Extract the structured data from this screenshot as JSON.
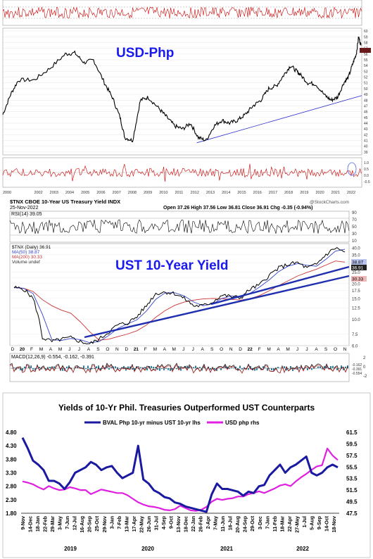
{
  "panel1": {
    "overlay_title": "USD-Php",
    "colors": {
      "price": "#000000",
      "trend": "#3333cc",
      "osc": "#cc0000",
      "title": "#1a1aee"
    },
    "x_labels": [
      "2000",
      "2002",
      "2003",
      "2004",
      "2005",
      "2006",
      "2007",
      "2008",
      "2009",
      "2010",
      "2011",
      "2012",
      "2013",
      "2014",
      "2015",
      "2016",
      "2017",
      "2018",
      "2019",
      "2020",
      "2021",
      "2022"
    ],
    "y_ticks": [
      "39",
      "40",
      "41",
      "42",
      "43",
      "44",
      "45",
      "46",
      "47",
      "48",
      "49",
      "50",
      "51",
      "52",
      "53",
      "54",
      "55",
      "56",
      "57",
      "58",
      "59",
      "60"
    ],
    "osc_ticks": [
      "1.0",
      "0.5",
      "0.0",
      "-0.5"
    ]
  },
  "panel2": {
    "header_left": "$TNX CBOE 10-Year US Treasury Yield INDX",
    "header_date": "25-Nov-2022",
    "ohlc": "Open 37.26  High 37.56  Low 36.81  Close 36.91  Chg -0.35 (-0.94%)",
    "credit": "@StockCharts.com",
    "rsi_label": "RSI(14) 39.05",
    "rsi_ticks": [
      "90",
      "70",
      "50",
      "30",
      "10"
    ],
    "legend": [
      "$TNX (Daily) 36.91",
      "MA(50) 38.87",
      "MA(200) 30.33",
      "Volume undef"
    ],
    "overlay_title": "UST 10-Year Yield",
    "y_ticks": [
      "40.0",
      "35.0",
      "30.0",
      "25.0",
      "22.5",
      "20.0",
      "17.5",
      "15.0",
      "12.5",
      "10.0",
      "7.5",
      "6.0"
    ],
    "last_values": [
      "38.87",
      "36.91",
      "30.33"
    ],
    "month_labels": [
      "D",
      "20",
      "F",
      "M",
      "A",
      "M",
      "J",
      "J",
      "A",
      "S",
      "O",
      "N",
      "D",
      "21",
      "F",
      "M",
      "A",
      "M",
      "J",
      "J",
      "A",
      "S",
      "O",
      "N",
      "D",
      "22",
      "F",
      "M",
      "A",
      "M",
      "J",
      "J",
      "A",
      "S",
      "O",
      "N"
    ],
    "macd_label": "MACD(12,26,9) -0.554, -0.162, -0.391",
    "macd_ticks": [
      "2",
      "0",
      "-2"
    ],
    "macd_values": [
      "-0.162",
      "-0.391",
      "-0.554"
    ],
    "colors": {
      "price": "#000000",
      "ma50": "#3344cc",
      "ma200": "#cc3333",
      "trend": "#1f2fb0",
      "title": "#1a1aee"
    }
  },
  "chart_data": [
    {
      "type": "line",
      "title": "USD-Php",
      "ylim": [
        38.5,
        60.5
      ],
      "series": [
        {
          "values": [
            [
              2000,
              45.5
            ],
            [
              2000.5,
              49
            ],
            [
              2001,
              51.5
            ],
            [
              2002,
              51.5
            ],
            [
              2003,
              53.5
            ],
            [
              2004,
              56
            ],
            [
              2004.6,
              56.2
            ],
            [
              2005.2,
              54.5
            ],
            [
              2005.8,
              55
            ],
            [
              2006.5,
              51
            ],
            [
              2007,
              48.5
            ],
            [
              2007.5,
              45
            ],
            [
              2007.8,
              41.5
            ],
            [
              2008.3,
              41
            ],
            [
              2008.8,
              48
            ],
            [
              2009.3,
              48.5
            ],
            [
              2010,
              46.5
            ],
            [
              2010.5,
              45
            ],
            [
              2011,
              43.5
            ],
            [
              2011.5,
              43
            ],
            [
              2012,
              44
            ],
            [
              2012.5,
              41.5
            ],
            [
              2013,
              41
            ],
            [
              2013.5,
              43.5
            ],
            [
              2014,
              44.5
            ],
            [
              2014.5,
              44
            ],
            [
              2015,
              44.5
            ],
            [
              2015.5,
              45.5
            ],
            [
              2016,
              47
            ],
            [
              2016.5,
              48
            ],
            [
              2017,
              50
            ],
            [
              2017.5,
              50.5
            ],
            [
              2018,
              52.5
            ],
            [
              2018.4,
              54
            ],
            [
              2018.8,
              53
            ],
            [
              2019,
              52.5
            ],
            [
              2019.5,
              51
            ],
            [
              2020,
              50.8
            ],
            [
              2020.6,
              48.8
            ],
            [
              2021,
              48
            ],
            [
              2021.4,
              48.5
            ],
            [
              2021.8,
              51
            ],
            [
              2022.1,
              52
            ],
            [
              2022.4,
              54.5
            ],
            [
              2022.6,
              56
            ],
            [
              2022.75,
              59
            ],
            [
              2022.9,
              57.5
            ]
          ]
        }
      ]
    },
    {
      "type": "line",
      "title": "UST 10-Year Yield",
      "ylim": [
        6.0,
        40.0
      ],
      "series": [
        {
          "values": [
            [
              "Dec-2019",
              18.5
            ],
            [
              "Jan-2020",
              18
            ],
            [
              "Feb-2020",
              15
            ],
            [
              "Mar-2020",
              7
            ],
            [
              "Apr-2020",
              6.5
            ],
            [
              "May-2020",
              6.8
            ],
            [
              "Jun-2020",
              7
            ],
            [
              "Jul-2020",
              6.5
            ],
            [
              "Aug-2020",
              6.2
            ],
            [
              "Sep-2020",
              6.8
            ],
            [
              "Oct-2020",
              7.8
            ],
            [
              "Nov-2020",
              9
            ],
            [
              "Dec-2020",
              9.3
            ],
            [
              "Jan-2021",
              10.5
            ],
            [
              "Feb-2021",
              13
            ],
            [
              "Mar-2021",
              16.5
            ],
            [
              "Apr-2021",
              17
            ],
            [
              "May-2021",
              16.5
            ],
            [
              "Jun-2021",
              15
            ],
            [
              "Jul-2021",
              13
            ],
            [
              "Aug-2021",
              13
            ],
            [
              "Sep-2021",
              14
            ],
            [
              "Oct-2021",
              16
            ],
            [
              "Nov-2021",
              15.5
            ],
            [
              "Dec-2021",
              15.2
            ],
            [
              "Jan-2022",
              18
            ],
            [
              "Feb-2022",
              19.5
            ],
            [
              "Mar-2022",
              23.5
            ],
            [
              "Apr-2022",
              27
            ],
            [
              "May-2022",
              29
            ],
            [
              "Jun-2022",
              30
            ],
            [
              "Jul-2022",
              27
            ],
            [
              "Aug-2022",
              29
            ],
            [
              "Sep-2022",
              35
            ],
            [
              "Oct-2022",
              40
            ],
            [
              "Nov-2022",
              36.9
            ]
          ]
        },
        {
          "name": "MA(50)",
          "values": [
            [
              "Nov-2022",
              38.87
            ]
          ]
        },
        {
          "name": "MA(200)",
          "values": [
            [
              "Nov-2022",
              30.33
            ]
          ]
        }
      ]
    },
    {
      "type": "line",
      "title": "Yields of 10-Yr Phil. Treasuries Outperformed UST Counterparts",
      "ylabel": "",
      "ylim": [
        1.8,
        4.8
      ],
      "y2lim": [
        47.5,
        61.5
      ],
      "y_ticks": [
        "4.80",
        "4.30",
        "3.80",
        "3.30",
        "2.80",
        "2.30",
        "1.80"
      ],
      "y2_ticks": [
        "61.5",
        "59.5",
        "57.5",
        "55.5",
        "53.5",
        "51.5",
        "49.5",
        "47.5"
      ],
      "x_tick_labels": [
        "9-Nov",
        "14-Dec",
        "18-Jan",
        "22-Feb",
        "29-Mar",
        "3-May",
        "7-Jun",
        "12-Jul",
        "16-Aug",
        "20-Sep",
        "25-Oct",
        "29-Nov",
        "3-Jan",
        "7-Feb",
        "13-Mar",
        "17-Apr",
        "22-May",
        "26-Jun",
        "31-Jul",
        "4-Sep",
        "9-Oct",
        "13-Nov",
        "18-Dec",
        "22-Jan",
        "26-Feb",
        "2-Apr",
        "7-May",
        "11-Jun",
        "16-Jul",
        "20-Aug",
        "24-Sep",
        "29-Oct",
        "3-Dec",
        "7-Jan",
        "11-Feb",
        "18-Mar",
        "22-Apr",
        "27-May",
        "1-Jul",
        "5-Aug",
        "9-Sep",
        "14-Oct",
        "18-Nov"
      ],
      "years": [
        "2019",
        "2020",
        "2021",
        "2022"
      ],
      "series": [
        {
          "name": "BVAL Php 10-yr minus UST 10-yr lhs",
          "axis": "left",
          "color": "#1a1aa0",
          "values": [
            4.6,
            4.2,
            3.75,
            3.6,
            3.4,
            3.0,
            3.0,
            2.9,
            2.7,
            2.95,
            3.3,
            3.4,
            3.5,
            3.7,
            3.6,
            3.4,
            3.5,
            3.55,
            3.3,
            3.1,
            3.2,
            3.3,
            4.3,
            3.05,
            2.9,
            2.65,
            2.55,
            2.4,
            2.35,
            2.2,
            2.15,
            2.05,
            2.0,
            1.95,
            1.9,
            1.85,
            2.5,
            2.9,
            2.7,
            2.7,
            2.65,
            2.6,
            2.45,
            2.6,
            2.55,
            2.8,
            2.85,
            3.2,
            3.4,
            3.6,
            3.3,
            3.5,
            3.6,
            3.75,
            3.9,
            3.3,
            3.2,
            3.3,
            3.5,
            3.6,
            3.5
          ]
        },
        {
          "name": "USD php rhs",
          "axis": "right",
          "color": "#e020e0",
          "values": [
            53.0,
            52.8,
            52.5,
            52.0,
            51.6,
            52.2,
            51.8,
            51.5,
            51.6,
            52.0,
            51.8,
            51.5,
            51.5,
            50.8,
            51.2,
            51.6,
            51.4,
            51.2,
            51.0,
            51.0,
            50.6,
            50.0,
            49.4,
            49.0,
            48.7,
            48.6,
            48.4,
            48.1,
            48.0,
            48.2,
            48.8,
            48.4,
            48.0,
            47.9,
            48.1,
            48.6,
            49.5,
            50.0,
            49.8,
            50.0,
            50.1,
            50.4,
            50.4,
            50.8,
            51.0,
            51.3,
            51.0,
            51.4,
            51.8,
            52.3,
            52.5,
            52.2,
            53.0,
            53.7,
            54.3,
            55.0,
            55.6,
            55.8,
            58.7,
            57.5,
            56.7
          ]
        }
      ]
    }
  ]
}
